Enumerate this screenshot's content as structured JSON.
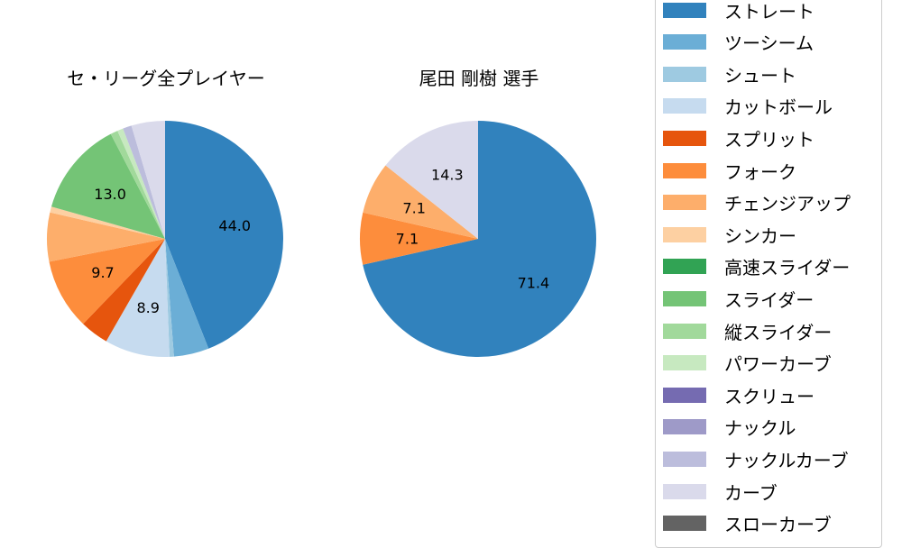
{
  "chart_data": [
    {
      "type": "pie",
      "title": "セ・リーグ全プレイヤー",
      "categories": [
        "ストレート",
        "ツーシーム",
        "シュート",
        "カットボール",
        "スプリット",
        "フォーク",
        "チェンジアップ",
        "シンカー",
        "スライダー",
        "縦スライダー",
        "パワーカーブ",
        "ナックルカーブ",
        "カーブ"
      ],
      "values": [
        44.0,
        4.8,
        0.6,
        8.9,
        3.9,
        9.7,
        6.7,
        0.8,
        13.0,
        1.0,
        0.8,
        1.2,
        4.6
      ],
      "labels_shown": {
        "ストレート": "44.0",
        "カットボール": "8.9",
        "フォーク": "9.7",
        "スライダー": "13.0"
      },
      "start_angle": 90,
      "direction": "clockwise"
    },
    {
      "type": "pie",
      "title": "尾田 剛樹  選手",
      "categories": [
        "ストレート",
        "フォーク",
        "チェンジアップ",
        "カーブ"
      ],
      "values": [
        71.4,
        7.1,
        7.1,
        14.3
      ],
      "labels_shown": {
        "ストレート": "71.4",
        "フォーク": "7.1",
        "チェンジアップ": "7.1",
        "カーブ": "14.3"
      },
      "start_angle": 90,
      "direction": "clockwise"
    }
  ],
  "charts": {
    "left": {
      "title": "セ・リーグ全プレイヤー"
    },
    "right": {
      "title": "尾田 剛樹  選手"
    }
  },
  "legend": {
    "items": [
      {
        "label": "ストレート",
        "color": "#3182bd"
      },
      {
        "label": "ツーシーム",
        "color": "#6baed6"
      },
      {
        "label": "シュート",
        "color": "#9ecae1"
      },
      {
        "label": "カットボール",
        "color": "#c6dbef"
      },
      {
        "label": "スプリット",
        "color": "#e6550d"
      },
      {
        "label": "フォーク",
        "color": "#fd8d3c"
      },
      {
        "label": "チェンジアップ",
        "color": "#fdae6b"
      },
      {
        "label": "シンカー",
        "color": "#fdd0a2"
      },
      {
        "label": "高速スライダー",
        "color": "#31a354"
      },
      {
        "label": "スライダー",
        "color": "#74c476"
      },
      {
        "label": "縦スライダー",
        "color": "#a1d99b"
      },
      {
        "label": "パワーカーブ",
        "color": "#c7e9c0"
      },
      {
        "label": "スクリュー",
        "color": "#756bb1"
      },
      {
        "label": "ナックル",
        "color": "#9e9ac8"
      },
      {
        "label": "ナックルカーブ",
        "color": "#bcbddc"
      },
      {
        "label": "カーブ",
        "color": "#dadaeb"
      },
      {
        "label": "スローカーブ",
        "color": "#636363"
      }
    ]
  }
}
